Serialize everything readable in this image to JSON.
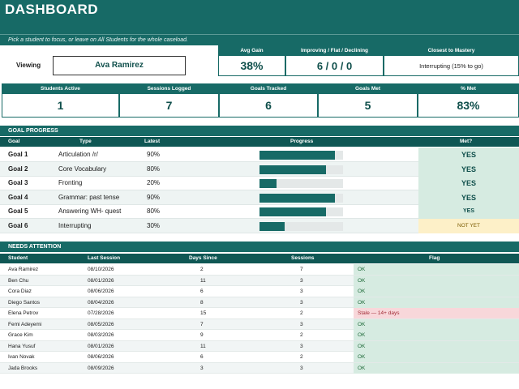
{
  "header": {
    "title": "DASHBOARD",
    "subtitle": "Pick a student to focus, or leave on All Students for the whole caseload."
  },
  "viewing": {
    "label": "Viewing",
    "value": "Ava Ramirez"
  },
  "top_kpis": [
    {
      "label": "Avg Gain",
      "value": "38%"
    },
    {
      "label": "Improving / Flat / Declining",
      "value": "6  /  0  /  0"
    },
    {
      "label": "Closest to Mastery",
      "value": "Interrupting  (15% to go)"
    }
  ],
  "stats": [
    {
      "label": "Students Active",
      "value": "1"
    },
    {
      "label": "Sessions Logged",
      "value": "7"
    },
    {
      "label": "Goals Tracked",
      "value": "6"
    },
    {
      "label": "Goals Met",
      "value": "5"
    },
    {
      "label": "% Met",
      "value": "83%"
    }
  ],
  "goal_progress": {
    "title": "GOAL PROGRESS",
    "columns": [
      "Goal",
      "Type",
      "Latest",
      "Progress",
      "Met?"
    ],
    "rows": [
      {
        "goal": "Goal 1",
        "type": "Articulation /r/",
        "latest": "90%",
        "progress": 0.9,
        "met": "YES",
        "met_status": "yes"
      },
      {
        "goal": "Goal 2",
        "type": "Core Vocabulary",
        "latest": "80%",
        "progress": 0.8,
        "met": "YES",
        "met_status": "yes"
      },
      {
        "goal": "Goal 3",
        "type": "Fronting",
        "latest": "20%",
        "progress": 0.2,
        "met": "YES",
        "met_status": "yes"
      },
      {
        "goal": "Goal 4",
        "type": "Grammar: past tense",
        "latest": "90%",
        "progress": 0.9,
        "met": "YES",
        "met_status": "yes"
      },
      {
        "goal": "Goal 5",
        "type": "Answering WH- quest",
        "latest": "80%",
        "progress": 0.8,
        "met": "YES",
        "met_status": "yes-small"
      },
      {
        "goal": "Goal 6",
        "type": "Interrupting",
        "latest": "30%",
        "progress": 0.3,
        "met": "NOT YET",
        "met_status": "no"
      }
    ]
  },
  "needs_attention": {
    "title": "NEEDS ATTENTION",
    "columns": [
      "Student",
      "Last Session",
      "Days Since",
      "Sessions",
      "Flag"
    ],
    "rows": [
      {
        "student": "Ava Ramirez",
        "last": "08/10/2026",
        "days": "2",
        "sessions": "7",
        "flag": "OK",
        "stale": false
      },
      {
        "student": "Ben Chu",
        "last": "08/01/2026",
        "days": "11",
        "sessions": "3",
        "flag": "OK",
        "stale": false
      },
      {
        "student": "Cora Diaz",
        "last": "08/06/2026",
        "days": "6",
        "sessions": "3",
        "flag": "OK",
        "stale": false
      },
      {
        "student": "Diego Santos",
        "last": "08/04/2026",
        "days": "8",
        "sessions": "3",
        "flag": "OK",
        "stale": false
      },
      {
        "student": "Elena Petrov",
        "last": "07/28/2026",
        "days": "15",
        "sessions": "2",
        "flag": "Stale — 14+ days",
        "stale": true
      },
      {
        "student": "Femi Adeyemi",
        "last": "08/05/2026",
        "days": "7",
        "sessions": "3",
        "flag": "OK",
        "stale": false
      },
      {
        "student": "Grace Kim",
        "last": "08/03/2026",
        "days": "9",
        "sessions": "2",
        "flag": "OK",
        "stale": false
      },
      {
        "student": "Hana Yusuf",
        "last": "08/01/2026",
        "days": "11",
        "sessions": "3",
        "flag": "OK",
        "stale": false
      },
      {
        "student": "Ivan Novak",
        "last": "08/06/2026",
        "days": "6",
        "sessions": "2",
        "flag": "OK",
        "stale": false
      },
      {
        "student": "Jada Brooks",
        "last": "08/09/2026",
        "days": "3",
        "sessions": "3",
        "flag": "OK",
        "stale": false
      }
    ]
  },
  "colors": {
    "teal": "#176a66",
    "met_yes_bg": "#d6ebe1",
    "met_no_bg": "#fdf0c8",
    "stale_bg": "#f8d7da",
    "ok_bg": "#d6ebe1"
  }
}
